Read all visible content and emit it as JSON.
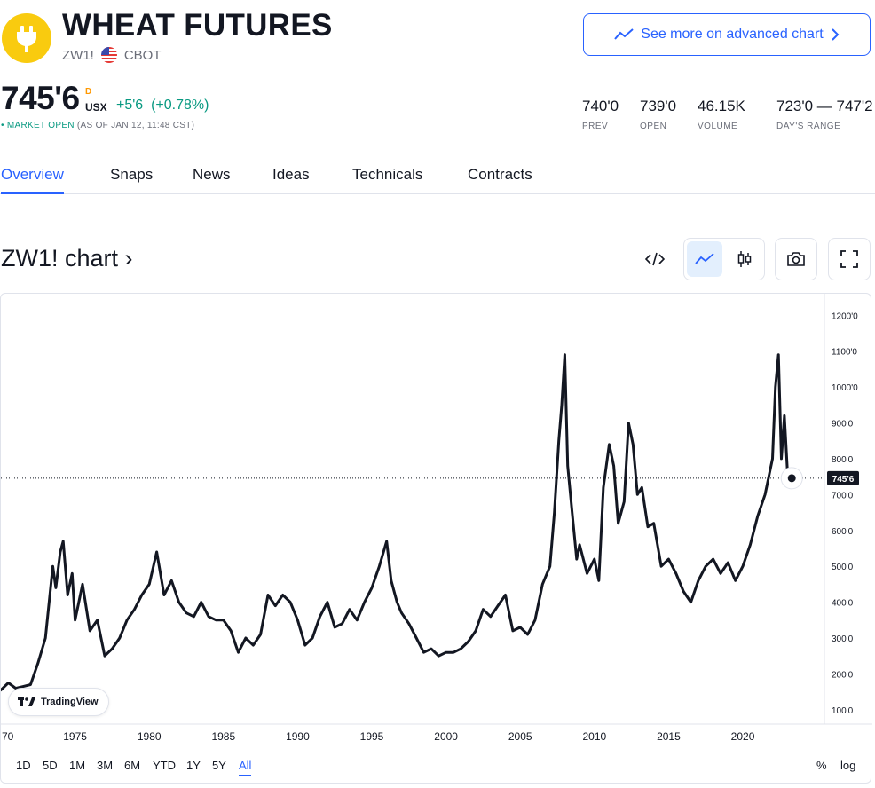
{
  "header": {
    "title": "WHEAT FUTURES",
    "symbol": "ZW1!",
    "exchange": "CBOT",
    "advanced_chart_label": "See more on advanced chart"
  },
  "quote": {
    "price": "745'6",
    "superscript": "D",
    "currency": "USX",
    "change": "+5'6",
    "change_pct": "(+0.78%)",
    "market_status": "MARKET OPEN",
    "as_of": "(AS OF JAN 12, 11:48 CST)"
  },
  "stats": [
    {
      "value": "740'0",
      "label": "PREV"
    },
    {
      "value": "739'0",
      "label": "OPEN"
    },
    {
      "value": "46.15K",
      "label": "VOLUME"
    },
    {
      "value": "723'0 — 747'2",
      "label": "DAY'S RANGE"
    }
  ],
  "tabs": [
    {
      "label": "Overview",
      "active": true
    },
    {
      "label": "Snaps"
    },
    {
      "label": "News"
    },
    {
      "label": "Ideas"
    },
    {
      "label": "Technicals"
    },
    {
      "label": "Contracts"
    }
  ],
  "chart_section": {
    "title": "ZW1! chart ›",
    "watermark": "TradingView"
  },
  "timeframes": {
    "items": [
      "1D",
      "5D",
      "1M",
      "3M",
      "6M",
      "YTD",
      "1Y",
      "5Y",
      "All"
    ],
    "active": "All",
    "right": [
      "%",
      "log"
    ]
  },
  "colors": {
    "accent": "#2962ff",
    "up": "#089981",
    "logo": "#f9cb0f",
    "line": "#131722"
  },
  "chart_data": {
    "type": "line",
    "title": "",
    "xlabel": "",
    "ylabel": "",
    "x_ticks": [
      "70",
      "1975",
      "1980",
      "1985",
      "1990",
      "1995",
      "2000",
      "2005",
      "2010",
      "2015",
      "2020"
    ],
    "y_ticks": [
      "1200'0",
      "1100'0",
      "1000'0",
      "900'0",
      "800'0",
      "700'0",
      "600'0",
      "500'0",
      "400'0",
      "300'0",
      "200'0",
      "100'0"
    ],
    "ylim": [
      60,
      1260
    ],
    "xlim": [
      1970,
      2025.5
    ],
    "last_price_label": "745'6",
    "last_price": 745.75,
    "x": [
      1970.0,
      1970.5,
      1971.0,
      1971.5,
      1972.0,
      1972.5,
      1973.0,
      1973.5,
      1973.7,
      1974.0,
      1974.2,
      1974.5,
      1974.8,
      1975.0,
      1975.5,
      1976.0,
      1976.5,
      1977.0,
      1977.5,
      1978.0,
      1978.5,
      1979.0,
      1979.5,
      1980.0,
      1980.5,
      1981.0,
      1981.5,
      1982.0,
      1982.5,
      1983.0,
      1983.5,
      1984.0,
      1984.5,
      1985.0,
      1985.5,
      1986.0,
      1986.5,
      1987.0,
      1987.5,
      1988.0,
      1988.5,
      1989.0,
      1989.5,
      1990.0,
      1990.5,
      1991.0,
      1991.5,
      1992.0,
      1992.5,
      1993.0,
      1993.5,
      1994.0,
      1994.5,
      1995.0,
      1995.5,
      1996.0,
      1996.3,
      1996.7,
      1997.0,
      1997.5,
      1998.0,
      1998.5,
      1999.0,
      1999.5,
      2000.0,
      2000.5,
      2001.0,
      2001.5,
      2002.0,
      2002.5,
      2003.0,
      2003.5,
      2004.0,
      2004.5,
      2005.0,
      2005.5,
      2006.0,
      2006.5,
      2007.0,
      2007.3,
      2007.6,
      2007.8,
      2008.0,
      2008.2,
      2008.5,
      2008.8,
      2009.0,
      2009.5,
      2010.0,
      2010.3,
      2010.6,
      2011.0,
      2011.3,
      2011.6,
      2012.0,
      2012.3,
      2012.6,
      2012.9,
      2013.2,
      2013.6,
      2014.0,
      2014.5,
      2015.0,
      2015.5,
      2016.0,
      2016.5,
      2017.0,
      2017.5,
      2018.0,
      2018.5,
      2019.0,
      2019.5,
      2020.0,
      2020.5,
      2021.0,
      2021.5,
      2022.0,
      2022.2,
      2022.4,
      2022.6,
      2022.8,
      2023.0,
      2023.3
    ],
    "values": [
      155,
      175,
      160,
      165,
      170,
      230,
      300,
      500,
      440,
      540,
      570,
      420,
      480,
      350,
      450,
      320,
      350,
      250,
      270,
      300,
      350,
      380,
      420,
      450,
      540,
      420,
      460,
      400,
      370,
      360,
      400,
      360,
      350,
      350,
      320,
      260,
      300,
      280,
      310,
      420,
      390,
      420,
      400,
      350,
      280,
      300,
      360,
      400,
      330,
      340,
      380,
      350,
      400,
      440,
      500,
      570,
      460,
      400,
      370,
      340,
      300,
      260,
      270,
      250,
      260,
      260,
      270,
      290,
      320,
      380,
      360,
      390,
      420,
      320,
      330,
      310,
      350,
      450,
      500,
      650,
      850,
      950,
      1090,
      780,
      650,
      520,
      560,
      480,
      520,
      460,
      720,
      840,
      780,
      620,
      680,
      900,
      840,
      700,
      720,
      610,
      620,
      500,
      520,
      480,
      430,
      400,
      460,
      500,
      520,
      480,
      510,
      460,
      500,
      560,
      640,
      700,
      800,
      1000,
      1090,
      800,
      920,
      770,
      746
    ]
  }
}
